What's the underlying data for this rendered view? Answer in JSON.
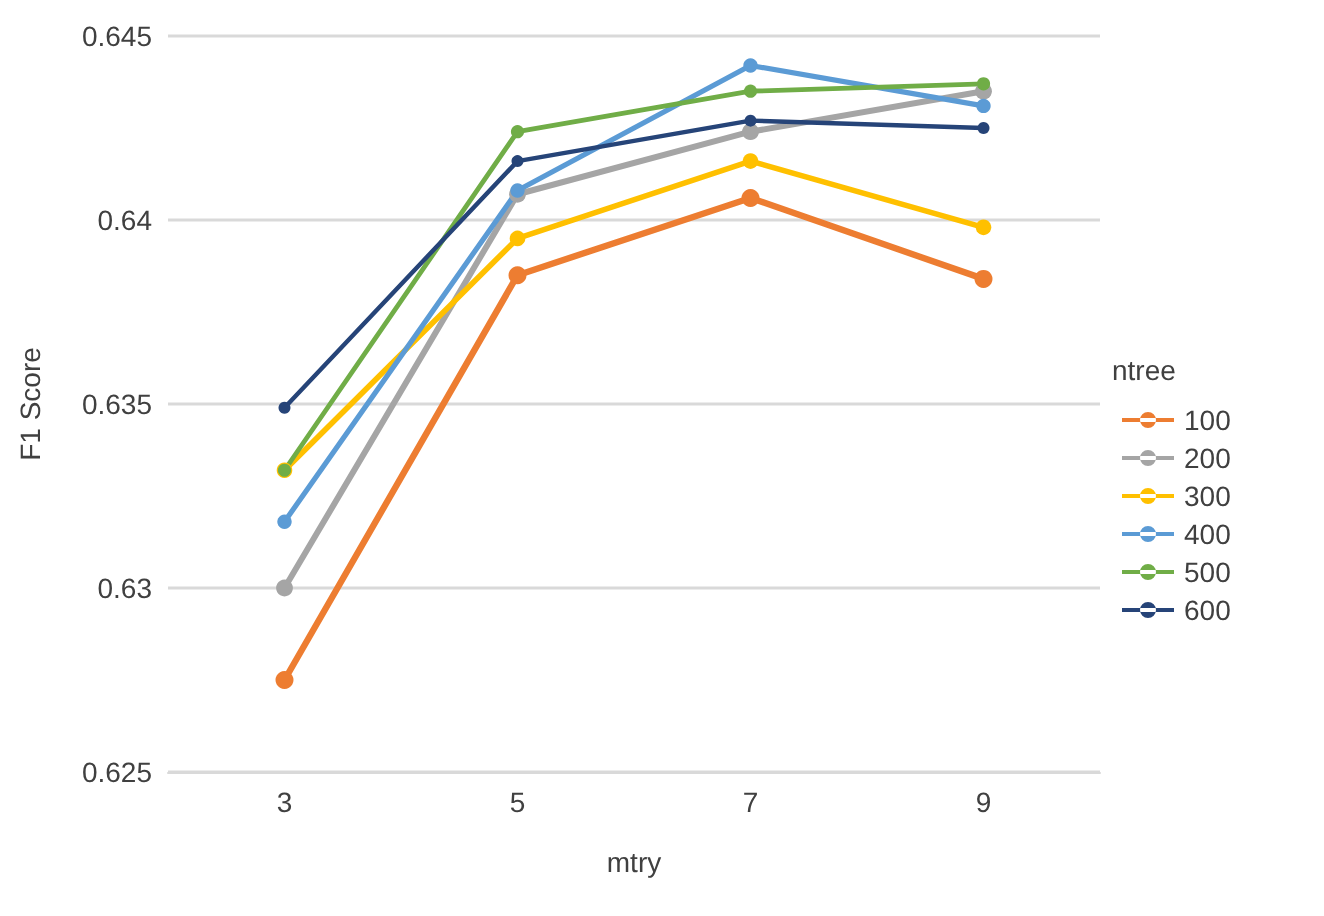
{
  "chart_data": {
    "type": "line",
    "xlabel": "mtry",
    "ylabel": "F1 Score",
    "legend_title": "ntree",
    "categories": [
      "3",
      "5",
      "7",
      "9"
    ],
    "series": [
      {
        "name": "100",
        "color": "#ed7d31",
        "values": [
          0.6275,
          0.6385,
          0.6406,
          0.6384
        ]
      },
      {
        "name": "200",
        "color": "#a5a5a5",
        "values": [
          0.63,
          0.6407,
          0.6424,
          0.6435
        ]
      },
      {
        "name": "300",
        "color": "#ffc000",
        "values": [
          0.6332,
          0.6395,
          0.6416,
          0.6398
        ]
      },
      {
        "name": "400",
        "color": "#5b9bd5",
        "values": [
          0.6318,
          0.6408,
          0.6442,
          0.6431
        ]
      },
      {
        "name": "500",
        "color": "#70ad47",
        "values": [
          0.6332,
          0.6424,
          0.6435,
          0.6437
        ]
      },
      {
        "name": "600",
        "color": "#264478",
        "values": [
          0.6349,
          0.6416,
          0.6427,
          0.6425
        ]
      }
    ],
    "ylim": [
      0.625,
      0.645
    ],
    "yticks": [
      0.625,
      0.63,
      0.635,
      0.64,
      0.645
    ],
    "grid": "y",
    "legend": "right",
    "marker": "circle",
    "line_style": "solid"
  }
}
